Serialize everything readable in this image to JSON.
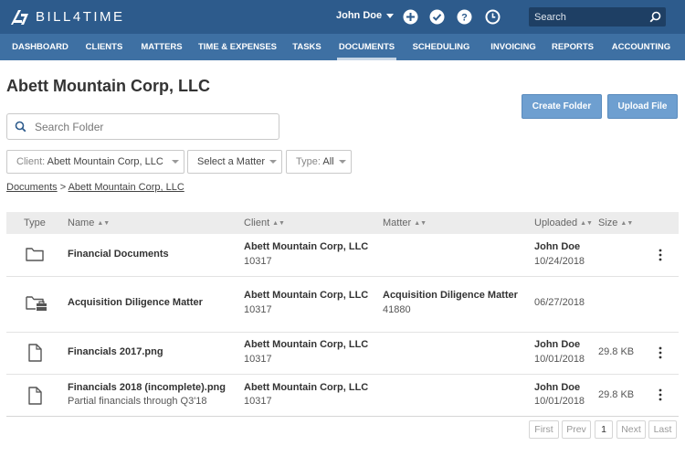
{
  "brand": {
    "name": "BILL4TIME"
  },
  "header": {
    "user_name": "John Doe",
    "icons": [
      "plus-circle-icon",
      "check-circle-icon",
      "help-circle-icon",
      "clock-icon"
    ],
    "search_placeholder": "Search"
  },
  "nav": {
    "items": [
      {
        "label": "DASHBOARD"
      },
      {
        "label": "CLIENTS"
      },
      {
        "label": "MATTERS"
      },
      {
        "label": "TIME & EXPENSES"
      },
      {
        "label": "TASKS"
      },
      {
        "label": "DOCUMENTS",
        "active": true
      },
      {
        "label": "SCHEDULING"
      },
      {
        "label": "INVOICING"
      },
      {
        "label": "REPORTS"
      },
      {
        "label": "ACCOUNTING"
      }
    ]
  },
  "page": {
    "title": "Abett Mountain Corp, LLC",
    "create_folder_label": "Create Folder",
    "upload_file_label": "Upload File",
    "search_placeholder": "Search Folder"
  },
  "filters": {
    "client_label": "Client:",
    "client_value": "Abett Mountain Corp, LLC",
    "matter_value": "Select a Matter",
    "type_label": "Type:",
    "type_value": "All"
  },
  "breadcrumb": {
    "root": "Documents",
    "separator": ">",
    "current": "Abett Mountain Corp, LLC"
  },
  "table": {
    "columns": [
      "Type",
      "Name",
      "Client",
      "Matter",
      "Uploaded",
      "Size"
    ],
    "sortable_mark": "⬍",
    "rows": [
      {
        "type_icon": "folder-icon",
        "name": "Financial Documents",
        "name_sub": "",
        "client": "Abett Mountain Corp, LLC",
        "client_id": "10317",
        "matter": "",
        "matter_id": "",
        "uploaded_by": "John Doe",
        "uploaded_date": "10/24/2018",
        "size": "",
        "menu": true
      },
      {
        "type_icon": "briefcase-folder-icon",
        "name": "Acquisition Diligence Matter",
        "name_sub": "",
        "client": "Abett Mountain Corp, LLC",
        "client_id": "10317",
        "matter": "Acquisition Diligence Matter",
        "matter_id": "41880",
        "uploaded_by": "",
        "uploaded_date": "06/27/2018",
        "size": "",
        "menu": false
      },
      {
        "type_icon": "file-icon",
        "name": "Financials 2017.png",
        "name_sub": "",
        "client": "Abett Mountain Corp, LLC",
        "client_id": "10317",
        "matter": "",
        "matter_id": "",
        "uploaded_by": "John Doe",
        "uploaded_date": "10/01/2018",
        "size": "29.8 KB",
        "menu": true
      },
      {
        "type_icon": "file-icon",
        "name": "Financials 2018 (incomplete).png",
        "name_sub": "Partial financials through Q3'18",
        "client": "Abett Mountain Corp, LLC",
        "client_id": "10317",
        "matter": "",
        "matter_id": "",
        "uploaded_by": "John Doe",
        "uploaded_date": "10/01/2018",
        "size": "29.8 KB",
        "menu": true
      }
    ]
  },
  "pagination": {
    "first": "First",
    "prev": "Prev",
    "page": "1",
    "next": "Next",
    "last": "Last"
  },
  "colors": {
    "topbar": "#2d5b8c",
    "navbar": "#3e70a3",
    "button": "#6e9fd0"
  }
}
